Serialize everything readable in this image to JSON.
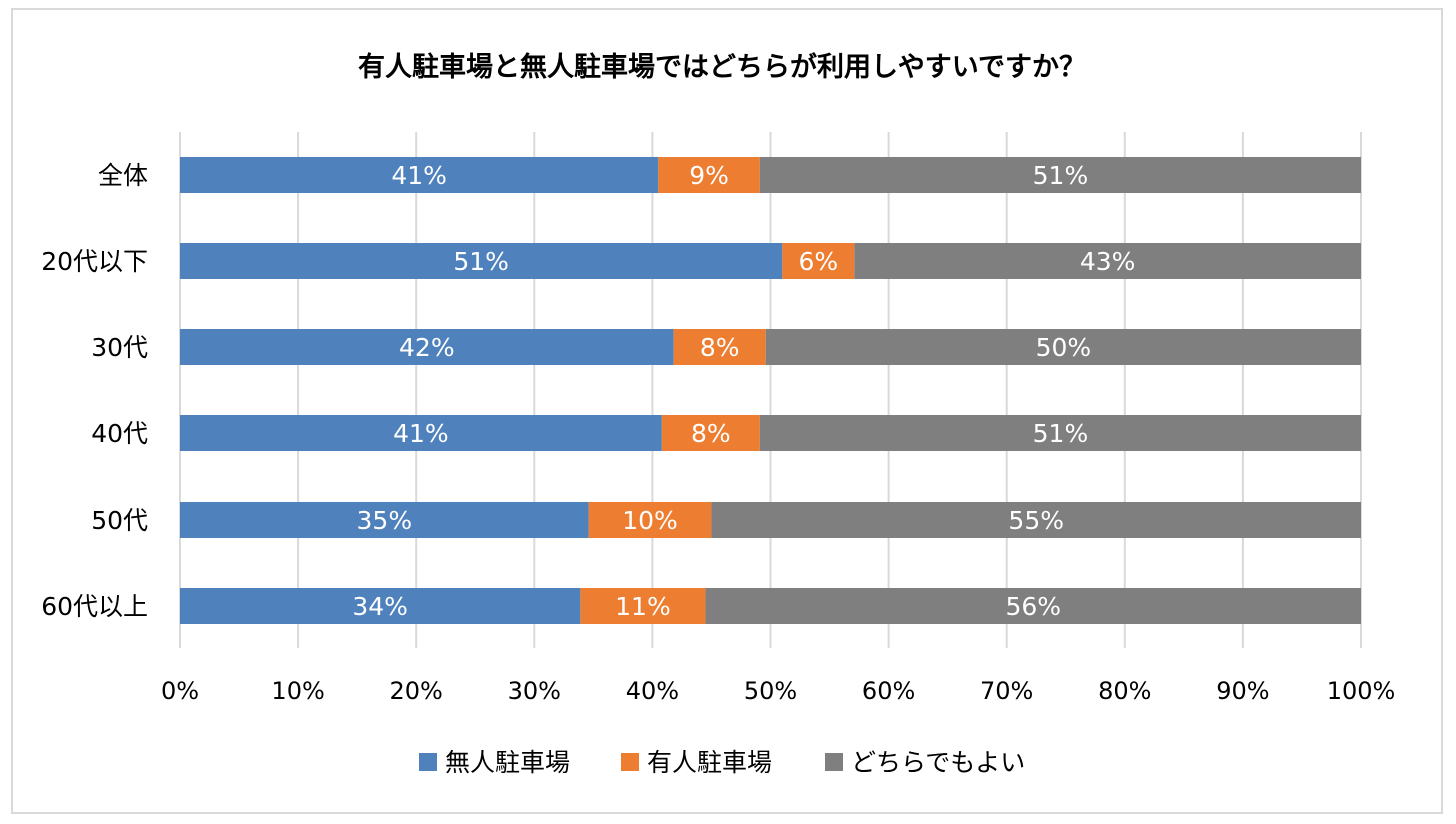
{
  "chart_data": {
    "type": "bar",
    "orientation": "horizontal",
    "stacked": true,
    "title": "有人駐車場と無人駐車場ではどちらが利用しやすいですか？",
    "categories": [
      "全体",
      "20代以下",
      "30代",
      "40代",
      "50代",
      "60代以上"
    ],
    "series": [
      {
        "name": "無人駐車場",
        "color": "#4f81bd",
        "values": [
          40.5,
          51.0,
          41.8,
          40.8,
          34.6,
          33.9
        ],
        "labels": [
          "41%",
          "51%",
          "42%",
          "41%",
          "35%",
          "34%"
        ]
      },
      {
        "name": "有人駐車場",
        "color": "#ed7d31",
        "values": [
          8.6,
          6.1,
          7.8,
          8.3,
          10.4,
          10.6
        ],
        "labels": [
          "9%",
          "6%",
          "8%",
          "8%",
          "10%",
          "11%"
        ]
      },
      {
        "name": "どちらでもよい",
        "color": "#7f7f7f",
        "values": [
          50.9,
          42.9,
          50.4,
          50.9,
          55.0,
          55.5
        ],
        "labels": [
          "51%",
          "43%",
          "50%",
          "51%",
          "55%",
          "56%"
        ]
      }
    ],
    "xlim": [
      0,
      100
    ],
    "xticks": [
      0,
      10,
      20,
      30,
      40,
      50,
      60,
      70,
      80,
      90,
      100
    ],
    "xtick_labels": [
      "0%",
      "10%",
      "20%",
      "30%",
      "40%",
      "50%",
      "60%",
      "70%",
      "80%",
      "90%",
      "100%"
    ],
    "grid": true,
    "legend_position": "bottom",
    "xlabel": "",
    "ylabel": ""
  }
}
